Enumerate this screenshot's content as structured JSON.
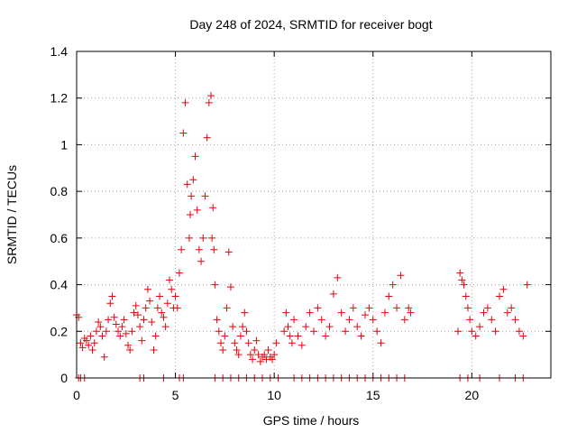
{
  "chart_data": {
    "type": "scatter",
    "title": "Day 248 of 2024, SRMTID for receiver bogt",
    "xlabel": "GPS time / hours",
    "ylabel": "SRMTID / TECUs",
    "xlim": [
      0,
      24
    ],
    "ylim": [
      0,
      1.4
    ],
    "xticks": [
      0,
      5,
      10,
      15,
      20
    ],
    "yticks": [
      0,
      0.2,
      0.4,
      0.6,
      0.8,
      1,
      1.2,
      1.4
    ],
    "xtick_labels": [
      "0",
      "5",
      "10",
      "15",
      "20"
    ],
    "ytick_labels": [
      "0",
      "0.2",
      "0.4",
      "0.6",
      "0.8",
      "1",
      "1.2",
      "1.4"
    ],
    "grid": true,
    "marker": "+",
    "color": "#e8000b",
    "series": [
      {
        "name": "SRMTID",
        "x": [
          0.0,
          0.1,
          0.2,
          0.3,
          0.4,
          0.5,
          0.6,
          0.7,
          0.8,
          0.9,
          1.0,
          1.1,
          1.2,
          1.3,
          1.4,
          1.5,
          1.6,
          1.7,
          1.8,
          1.9,
          2.0,
          2.1,
          2.2,
          2.3,
          2.4,
          2.5,
          2.6,
          2.7,
          2.8,
          2.9,
          3.0,
          3.1,
          3.2,
          3.3,
          3.4,
          3.5,
          3.6,
          3.7,
          3.8,
          3.9,
          4.0,
          4.1,
          4.2,
          4.3,
          4.4,
          4.5,
          4.6,
          4.7,
          4.8,
          4.9,
          5.0,
          5.1,
          5.2,
          5.3,
          5.4,
          5.5,
          5.6,
          5.7,
          5.75,
          5.8,
          5.9,
          6.0,
          6.1,
          6.2,
          6.3,
          6.4,
          6.5,
          6.6,
          6.7,
          6.8,
          6.85,
          6.9,
          6.95,
          7.0,
          7.1,
          7.2,
          7.3,
          7.4,
          7.5,
          7.6,
          7.7,
          7.8,
          7.9,
          8.0,
          8.1,
          8.2,
          8.3,
          8.4,
          8.5,
          8.6,
          8.7,
          8.8,
          8.9,
          9.0,
          9.1,
          9.2,
          9.3,
          9.4,
          9.5,
          9.6,
          9.7,
          9.8,
          9.9,
          10.0,
          10.1,
          10.5,
          10.6,
          10.7,
          10.8,
          10.9,
          11.0,
          11.2,
          11.4,
          11.6,
          11.8,
          12.0,
          12.2,
          12.4,
          12.6,
          12.8,
          13.0,
          13.2,
          13.4,
          13.6,
          13.8,
          14.0,
          14.2,
          14.4,
          14.6,
          14.8,
          15.0,
          15.2,
          15.4,
          15.6,
          15.8,
          16.0,
          16.2,
          16.4,
          16.6,
          16.8,
          16.9,
          19.3,
          19.4,
          19.5,
          19.6,
          19.7,
          19.8,
          19.9,
          20.0,
          20.2,
          20.4,
          20.6,
          20.8,
          21.0,
          21.2,
          21.4,
          21.6,
          21.8,
          22.0,
          22.2,
          22.4,
          22.6,
          22.8
        ],
        "y": [
          0.27,
          0.26,
          0.15,
          0.13,
          0.17,
          0.16,
          0.14,
          0.18,
          0.12,
          0.15,
          0.2,
          0.24,
          0.22,
          0.18,
          0.09,
          0.2,
          0.25,
          0.32,
          0.35,
          0.26,
          0.23,
          0.2,
          0.18,
          0.22,
          0.25,
          0.19,
          0.14,
          0.12,
          0.2,
          0.28,
          0.31,
          0.27,
          0.22,
          0.16,
          0.25,
          0.3,
          0.38,
          0.33,
          0.24,
          0.12,
          0.18,
          0.3,
          0.35,
          0.28,
          0.26,
          0.22,
          0.32,
          0.42,
          0.38,
          0.3,
          0.35,
          0.3,
          0.45,
          0.55,
          1.05,
          1.18,
          0.83,
          0.6,
          0.7,
          0.78,
          0.85,
          0.95,
          0.72,
          0.55,
          0.5,
          0.6,
          0.78,
          1.03,
          1.18,
          1.21,
          0.6,
          0.73,
          0.55,
          0.4,
          0.25,
          0.2,
          0.15,
          0.12,
          0.18,
          0.3,
          0.54,
          0.39,
          0.22,
          0.15,
          0.12,
          0.1,
          0.18,
          0.22,
          0.28,
          0.2,
          0.15,
          0.1,
          0.08,
          0.12,
          0.16,
          0.1,
          0.07,
          0.09,
          0.1,
          0.08,
          0.12,
          0.09,
          0.08,
          0.1,
          0.15,
          0.2,
          0.28,
          0.22,
          0.18,
          0.15,
          0.25,
          0.18,
          0.14,
          0.22,
          0.28,
          0.2,
          0.3,
          0.25,
          0.18,
          0.22,
          0.36,
          0.43,
          0.28,
          0.2,
          0.25,
          0.3,
          0.22,
          0.18,
          0.27,
          0.3,
          0.25,
          0.2,
          0.15,
          0.28,
          0.35,
          0.4,
          0.3,
          0.44,
          0.25,
          0.3,
          0.28,
          0.2,
          0.45,
          0.42,
          0.4,
          0.35,
          0.3,
          0.25,
          0.2,
          0.18,
          0.22,
          0.28,
          0.3,
          0.25,
          0.2,
          0.35,
          0.38,
          0.28,
          0.3,
          0.25,
          0.2,
          0.18,
          0.4
        ],
        "baseline_x": [
          0.1,
          0.2,
          0.4,
          3.2,
          3.4,
          4.4,
          5.2,
          5.4,
          7.0,
          7.4,
          7.8,
          8.2,
          8.6,
          9.0,
          9.4,
          9.8,
          10.2,
          11.0,
          11.4,
          11.8,
          12.2,
          12.6,
          13.0,
          13.4,
          13.8,
          14.2,
          14.6,
          15.0,
          15.4,
          15.8,
          16.2,
          16.6,
          19.4,
          19.8,
          20.4,
          21.4,
          22.2,
          22.6
        ]
      }
    ]
  }
}
